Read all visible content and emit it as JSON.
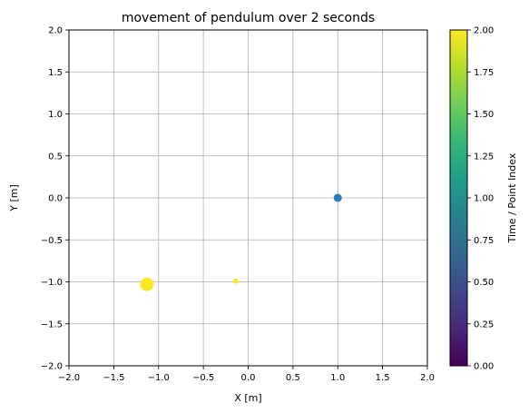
{
  "chart_data": {
    "type": "scatter",
    "title": "movement of pendulum over 2 seconds",
    "xlabel": "X [m]",
    "ylabel": "Y [m]",
    "xlim": [
      -2.0,
      2.0
    ],
    "ylim": [
      -2.0,
      2.0
    ],
    "xticks": [
      -2.0,
      -1.5,
      -1.0,
      -0.5,
      0.0,
      0.5,
      1.0,
      1.5,
      2.0
    ],
    "yticks": [
      -2.0,
      -1.5,
      -1.0,
      -0.5,
      0.0,
      0.5,
      1.0,
      1.5,
      2.0
    ],
    "xtick_labels": [
      "−2.0",
      "−1.5",
      "−1.0",
      "−0.5",
      "0.0",
      "0.5",
      "1.0",
      "1.5",
      "2.0"
    ],
    "ytick_labels": [
      "−2.0",
      "−1.5",
      "−1.0",
      "−0.5",
      "0.0",
      "0.5",
      "1.0",
      "1.5",
      "2.0"
    ],
    "grid": true,
    "points": [
      {
        "x": 1.0,
        "y": 0.0,
        "t": 0.63,
        "color": "#2c7fb8"
      },
      {
        "x": -1.13,
        "y": -1.03,
        "t": 2.0,
        "color": "#fde725"
      },
      {
        "x": -0.14,
        "y": -0.99,
        "t": 2.0,
        "color": "#fde725"
      }
    ],
    "colorbar": {
      "label": "Time / Point Index",
      "range": [
        0.0,
        2.0
      ],
      "ticks": [
        0.0,
        0.25,
        0.5,
        0.75,
        1.0,
        1.25,
        1.5,
        1.75,
        2.0
      ],
      "tick_labels": [
        "0.00",
        "0.25",
        "0.50",
        "0.75",
        "1.00",
        "1.25",
        "1.50",
        "1.75",
        "2.00"
      ],
      "colormap": "viridis",
      "colors": [
        "#440154",
        "#482878",
        "#3e4989",
        "#31688e",
        "#26828e",
        "#1f9e89",
        "#35b779",
        "#6ece58",
        "#b5de2b",
        "#fde725"
      ]
    }
  }
}
